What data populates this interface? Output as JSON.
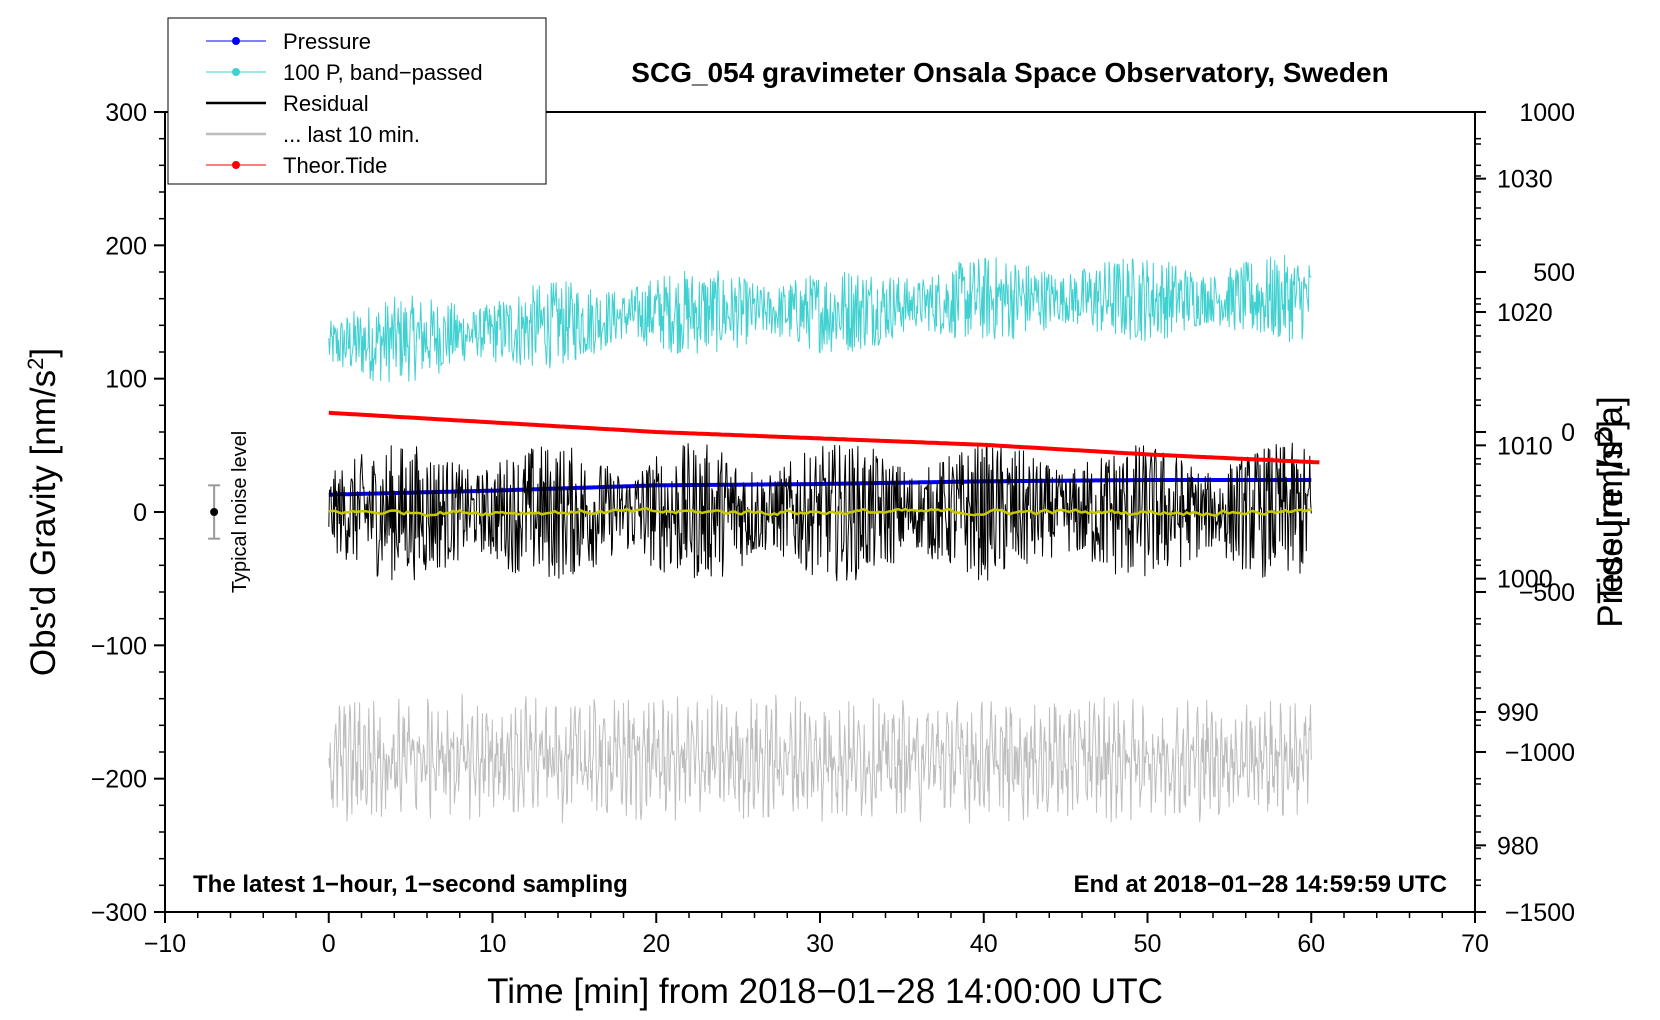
{
  "chart_data": {
    "type": "line",
    "title": "SCG_054 gravimeter Onsala Space Observatory, Sweden",
    "xlabel": "Time [min] from 2018−01−28 14:00:00 UTC",
    "ylabel_left": "Obs'd Gravity [nm/s²]",
    "ylabel_right_top": "Pressure [hPa]",
    "ylabel_right_bottom": "Tide [nm/s²]",
    "xlim": [
      -10,
      70
    ],
    "ylim_left": [
      -300,
      300
    ],
    "x_ticks": [
      -10,
      0,
      10,
      20,
      30,
      40,
      50,
      60,
      70
    ],
    "x_tick_labels": [
      "−10",
      "0",
      "10",
      "20",
      "30",
      "40",
      "50",
      "60",
      "70"
    ],
    "y_left_ticks": [
      300,
      200,
      100,
      0,
      -100,
      -200,
      -300
    ],
    "y_left_tick_labels": [
      "300",
      "200",
      "100",
      "0",
      "−100",
      "−200",
      "−300"
    ],
    "pressure_axis": {
      "range": [
        975,
        1035
      ],
      "ticks": [
        980,
        990,
        1000,
        1010,
        1020,
        1030
      ],
      "tick_labels": [
        "980",
        "990",
        "1000",
        "1010",
        "1020",
        "1030"
      ]
    },
    "tide_axis": {
      "range": [
        -1500,
        1000
      ],
      "ticks": [
        1000,
        500,
        0,
        -500,
        -1000,
        -1500
      ],
      "tick_labels": [
        "1000",
        "500",
        "0",
        "−500",
        "−1000",
        "−1500"
      ]
    },
    "legend": {
      "placement": "top-left",
      "entries": [
        {
          "label": "Pressure",
          "color": "#0000ff",
          "marker": "dot"
        },
        {
          "label": "100 P, band−passed",
          "color": "#3fd0d0",
          "marker": "dot"
        },
        {
          "label": "Residual",
          "color": "#000000",
          "marker": "none"
        },
        {
          "label": "... last 10 min.",
          "color": "#bdbdbd",
          "marker": "none"
        },
        {
          "label": "Theor.Tide",
          "color": "#ff0000",
          "marker": "dot"
        }
      ]
    },
    "series": [
      {
        "name": "Pressure",
        "axis": "pressure_hPa",
        "color": "#0000ff",
        "x": [
          0,
          10,
          20,
          30,
          40,
          50,
          60
        ],
        "values": [
          1006.3,
          1006.6,
          1007.0,
          1007.1,
          1007.3,
          1007.4,
          1007.4
        ]
      },
      {
        "name": "100 P, band−passed",
        "axis": "gravity_nm_s2",
        "color": "#3fd0d0",
        "x": [
          0,
          10,
          20,
          30,
          40,
          50,
          60
        ],
        "values": [
          125,
          135,
          150,
          150,
          160,
          160,
          160
        ],
        "noise_amplitude": 25
      },
      {
        "name": "Residual",
        "axis": "gravity_nm_s2",
        "color": "#000000",
        "x": [
          0,
          10,
          20,
          30,
          40,
          50,
          60
        ],
        "values": [
          0,
          0,
          0,
          0,
          0,
          0,
          0
        ],
        "noise_amplitude": 40
      },
      {
        "name": "Residual smoothed",
        "axis": "gravity_nm_s2",
        "color": "#c8c800",
        "x": [
          0,
          10,
          20,
          30,
          40,
          50,
          60
        ],
        "values": [
          0,
          0,
          0,
          0,
          0,
          0,
          0
        ]
      },
      {
        "name": "... last 10 min.",
        "axis": "gravity_nm_s2",
        "color": "#bdbdbd",
        "x": [
          0,
          10,
          20,
          30,
          40,
          50,
          60
        ],
        "values": [
          -185,
          -185,
          -185,
          -185,
          -185,
          -185,
          -185
        ],
        "noise_amplitude": 35
      },
      {
        "name": "Theor.Tide",
        "axis": "tide_nm_s2",
        "color": "#ff0000",
        "x": [
          0,
          10,
          20,
          30,
          40,
          50,
          60.5
        ],
        "values": [
          60,
          30,
          0,
          -20,
          -40,
          -70,
          -95
        ]
      }
    ],
    "noise_bar": {
      "x": -7,
      "center": 0,
      "low": -20,
      "high": 20,
      "label": "Typical noise level"
    },
    "annotations": {
      "bottom_left": "The latest 1−hour, 1−second sampling",
      "bottom_right": "End at 2018−01−28 14:59:59 UTC"
    }
  }
}
